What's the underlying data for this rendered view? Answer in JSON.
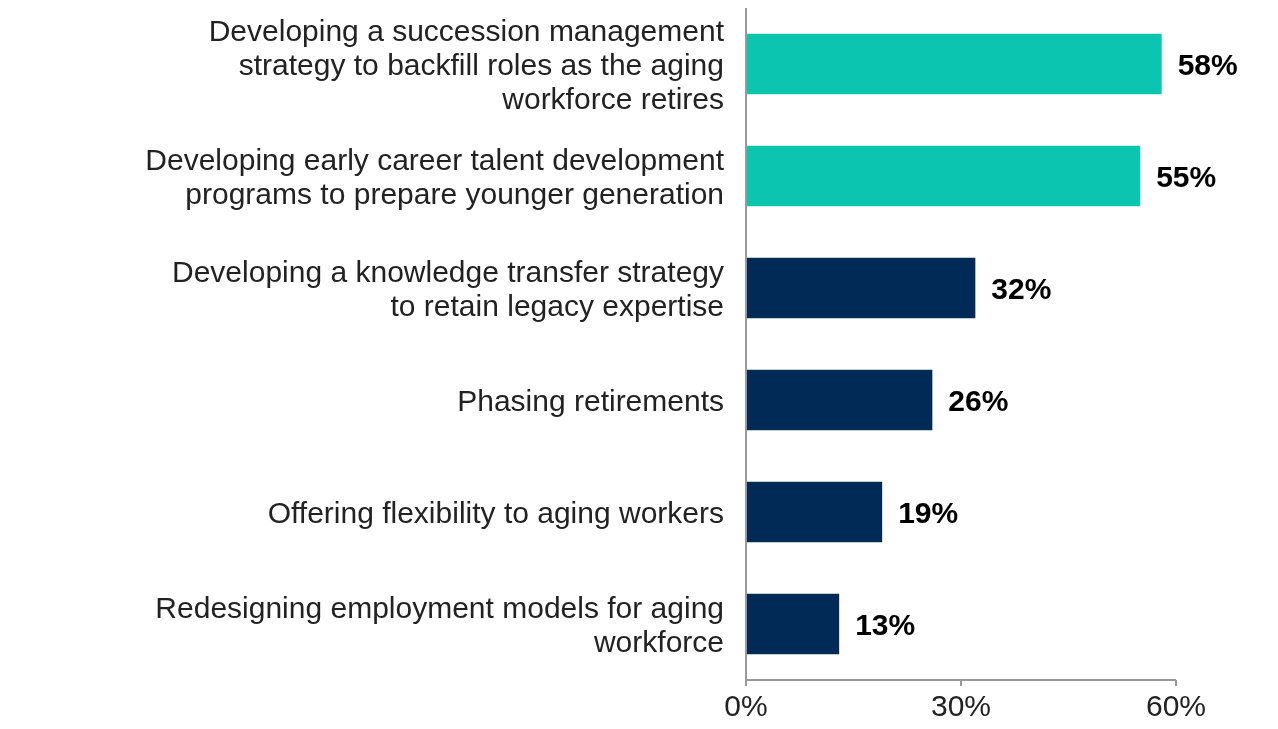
{
  "chart_data": {
    "type": "bar",
    "orientation": "horizontal",
    "categories": [
      "Developing a succession management strategy to backfill roles as the aging workforce retires",
      "Developing early career talent development programs to prepare younger generation",
      "Developing a knowledge transfer strategy to retain legacy expertise",
      "Phasing retirements",
      "Offering flexibility to aging workers",
      "Redesigning employment models for aging workforce"
    ],
    "values": [
      58,
      55,
      32,
      26,
      19,
      13
    ],
    "value_labels": [
      "58%",
      "55%",
      "32%",
      "26%",
      "19%",
      "13%"
    ],
    "colors": [
      "#0bc5b1",
      "#0bc5b1",
      "#022a56",
      "#022a56",
      "#022a56",
      "#022a56"
    ],
    "xlim": [
      0,
      60
    ],
    "xticks": [
      {
        "value": 0,
        "label": "0%"
      },
      {
        "value": 30,
        "label": "30%"
      },
      {
        "value": 60,
        "label": "60%"
      }
    ],
    "grid": false
  }
}
